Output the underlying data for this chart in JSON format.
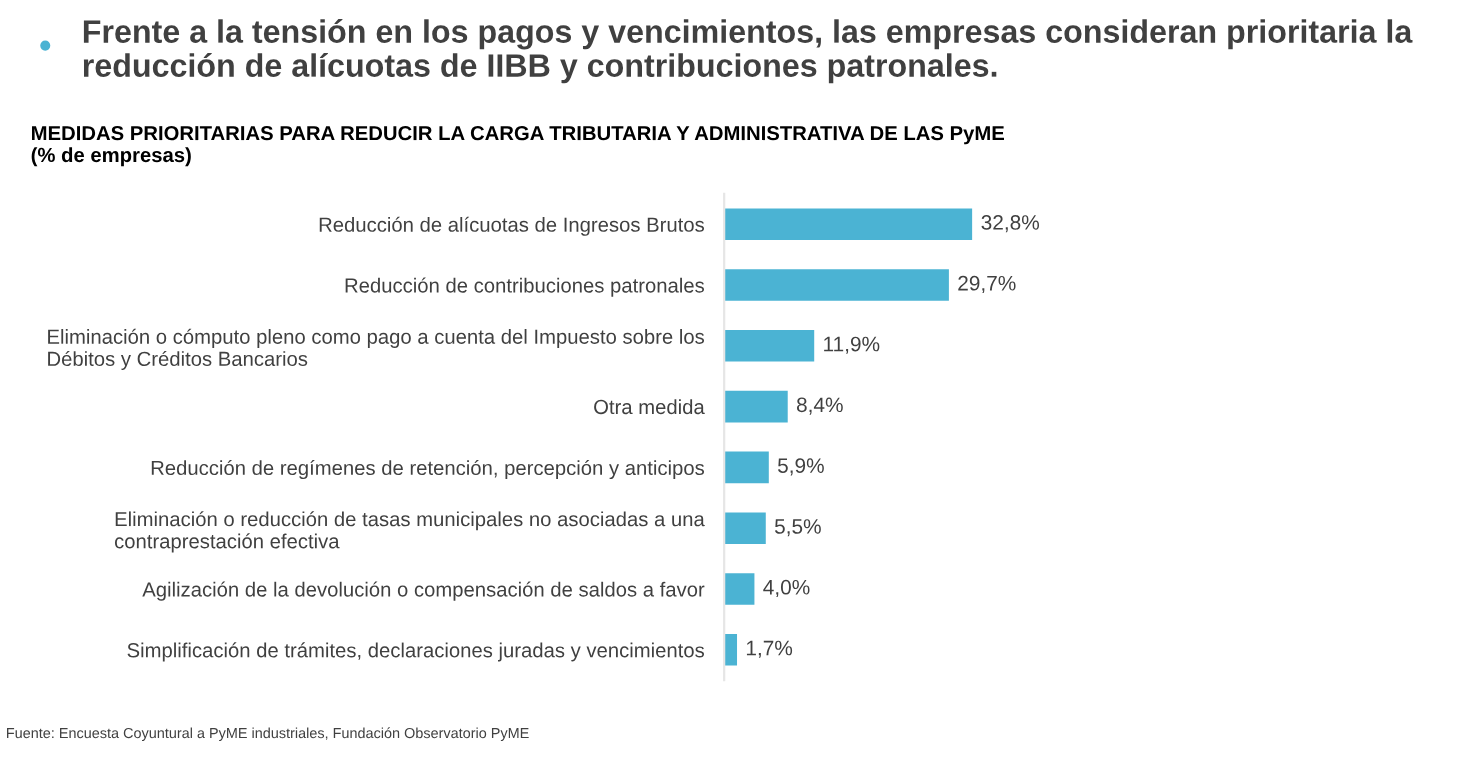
{
  "chart_data": {
    "type": "bar",
    "orientation": "horizontal",
    "title": "Frente a la tensión en los pagos y vencimientos, las empresas consideran prioritaria la\nreducción de alícuotas de IIBB y contribuciones patronales.",
    "subtitle": "MEDIDAS PRIORITARIAS PARA REDUCIR LA CARGA TRIBUTARIA Y ADMINISTRATIVA DE LAS PyME\n(% de empresas)",
    "categories": [
      "Reducción de alícuotas de Ingresos Brutos",
      "Reducción de contribuciones patronales",
      "Eliminación o cómputo pleno como pago a cuenta del Impuesto sobre los\nDébitos y Créditos Bancarios",
      "Otra medida",
      "Reducción de regímenes de retención, percepción y anticipos",
      "Eliminación o reducción de tasas municipales no asociadas a una\ncontraprestación efectiva",
      "Agilización de la devolución o compensación de saldos a favor",
      "Simplificación de trámites, declaraciones juradas y vencimientos"
    ],
    "values": [
      32.8,
      29.7,
      11.9,
      8.4,
      5.9,
      5.5,
      4.0,
      1.7
    ],
    "value_labels": [
      "32,8%",
      "29,7%",
      "11,9%",
      "8,4%",
      "5,9%",
      "5,5%",
      "4,0%",
      "1,7%"
    ],
    "color": "#4bb3d3",
    "tick_labels": "y",
    "grid": false,
    "legend": false,
    "annotations": [
      "Fuente: Encuesta Coyuntural a PyME industriales, Fundación Observatorio PyME"
    ]
  }
}
